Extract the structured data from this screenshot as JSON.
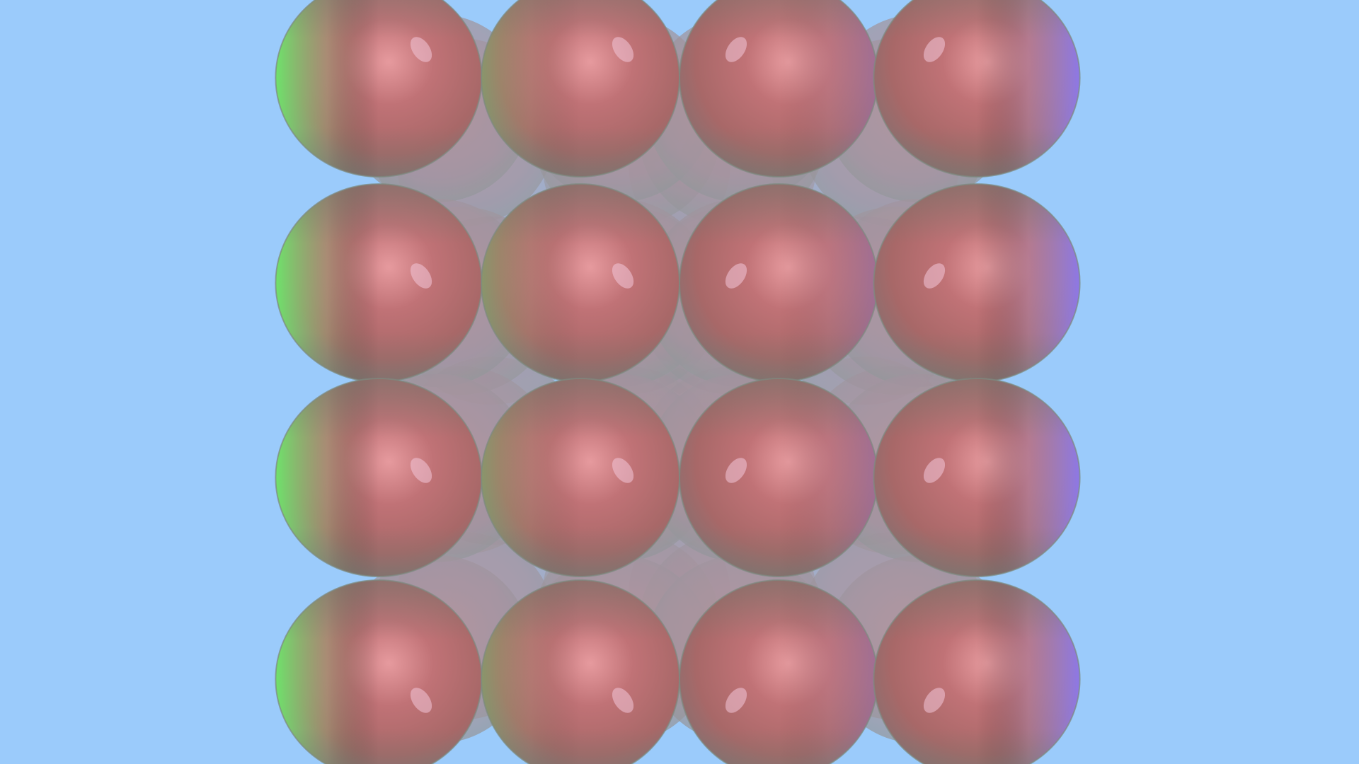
{
  "scene": {
    "background_color": "#9bcbfb",
    "grid": {
      "rows": 4,
      "columns": 4,
      "depth_layers": 4
    },
    "sphere_palette": {
      "base": "#b36a6a",
      "highlight": "#e69a9e",
      "rim_left": "#6af06a",
      "rim_right": "#8a7af5",
      "shadow": "#7a7a7a"
    }
  }
}
